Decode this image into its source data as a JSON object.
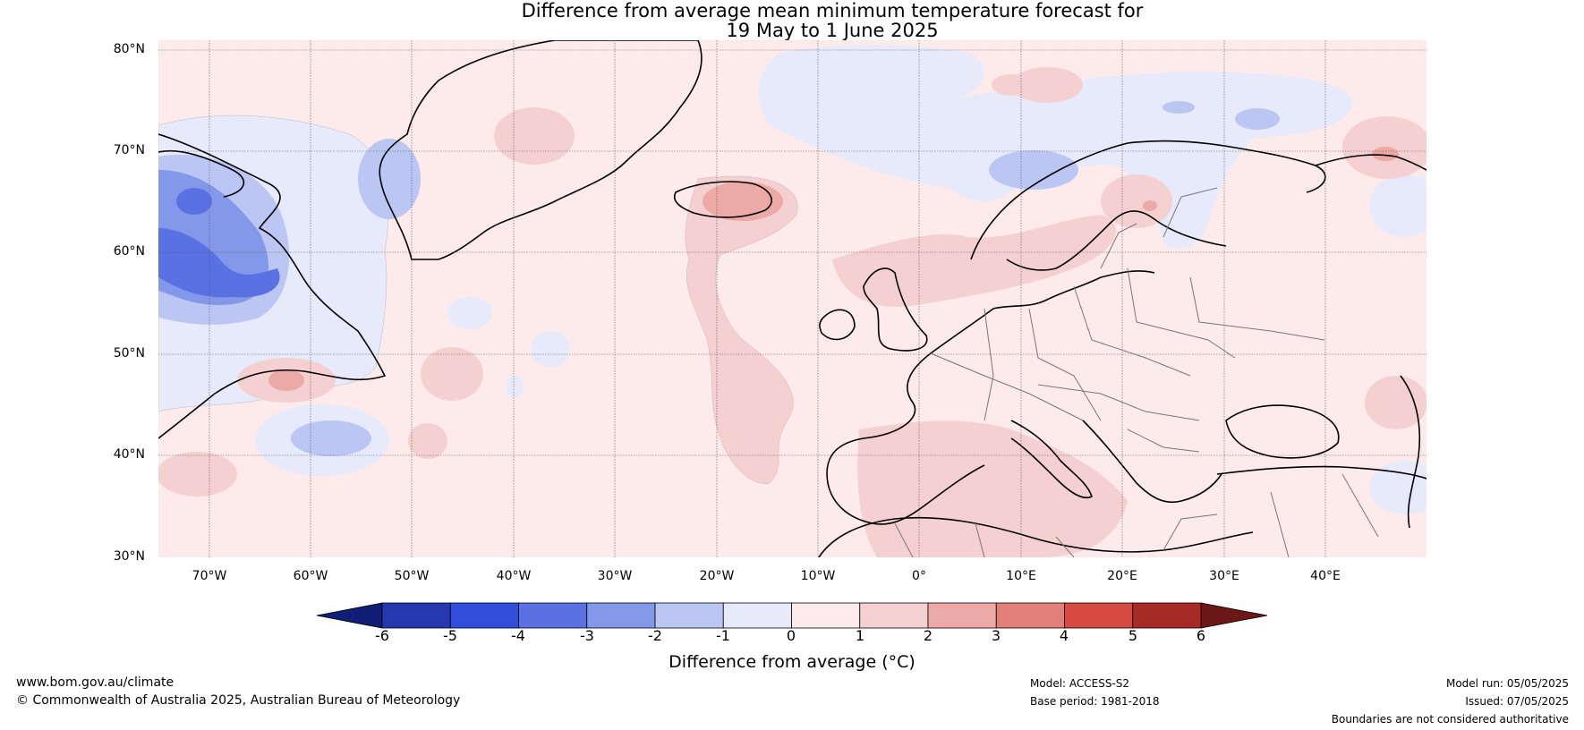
{
  "title": {
    "line1": "Difference from average mean minimum temperature forecast for",
    "line2": "19 May to 1 June 2025"
  },
  "map": {
    "projection": "plate-carree",
    "lon_range": [
      -75,
      50
    ],
    "lat_range": [
      30,
      81
    ],
    "lat_labels": [
      "80°N",
      "70°N",
      "60°N",
      "50°N",
      "40°N",
      "30°N"
    ],
    "lon_labels": [
      "70°W",
      "60°W",
      "50°W",
      "40°W",
      "30°W",
      "20°W",
      "10°W",
      "0°",
      "10°E",
      "20°E",
      "30°E",
      "40°E"
    ],
    "gridlines": true
  },
  "colorbar": {
    "title": "Difference from average (°C)",
    "tick_labels": [
      "-6",
      "-5",
      "-4",
      "-3",
      "-2",
      "-1",
      "0",
      "1",
      "2",
      "3",
      "4",
      "5",
      "6"
    ],
    "colors": [
      "#101e78",
      "#2538b0",
      "#2f4fdc",
      "#5a71e4",
      "#8498ea",
      "#bcc6f3",
      "#e7eafb",
      "#fcebea",
      "#f4d0d0",
      "#eda9a5",
      "#e27f78",
      "#d64a3f",
      "#a62a26",
      "#6d1818"
    ],
    "extend": "both"
  },
  "footer": {
    "url": "www.bom.gov.au/climate",
    "copyright": "© Commonwealth of Australia 2025, Australian Bureau of Meteorology",
    "model": "Model: ACCESS-S2",
    "base_period": "Base period: 1981-2018",
    "model_run": "Model run: 05/05/2025",
    "issued": "Issued: 07/05/2025",
    "disclaimer": "Boundaries are not considered authoritative"
  }
}
